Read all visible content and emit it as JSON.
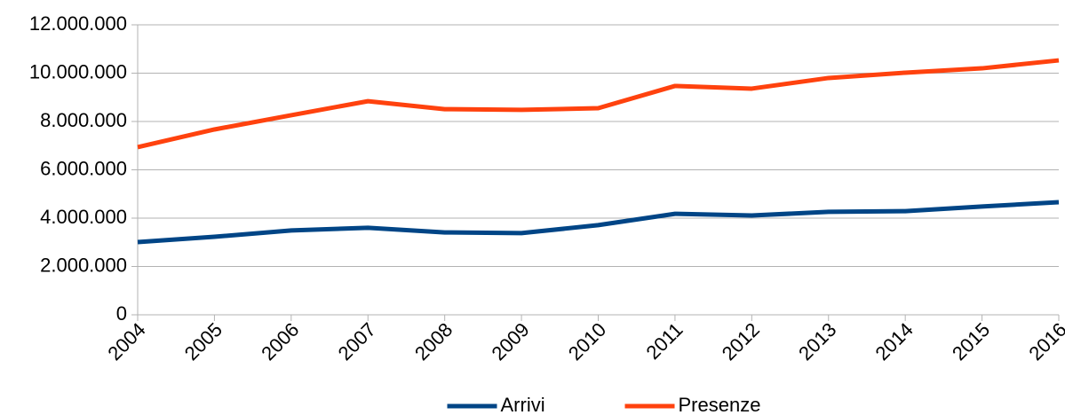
{
  "chart_data": {
    "type": "line",
    "categories": [
      "2004",
      "2005",
      "2006",
      "2007",
      "2008",
      "2009",
      "2010",
      "2011",
      "2012",
      "2013",
      "2014",
      "2015",
      "2016"
    ],
    "series": [
      {
        "name": "Arrivi",
        "color": "#004586",
        "values": [
          3010000,
          3230000,
          3490000,
          3600000,
          3410000,
          3380000,
          3710000,
          4180000,
          4110000,
          4260000,
          4290000,
          4480000,
          4660000
        ]
      },
      {
        "name": "Presenze",
        "color": "#ff420e",
        "values": [
          6940000,
          7670000,
          8260000,
          8840000,
          8510000,
          8480000,
          8550000,
          9470000,
          9360000,
          9800000,
          10020000,
          10200000,
          10530000
        ]
      }
    ],
    "ylim": [
      0,
      12000000
    ],
    "yticks": [
      0,
      {
        "value": 2000000,
        "label": "2.000.000"
      },
      {
        "value": 4000000,
        "label": "4.000.000"
      },
      {
        "value": 6000000,
        "label": "6.000.000"
      },
      {
        "value": 8000000,
        "label": "8.000.000"
      },
      {
        "value": 10000000,
        "label": "10.000.000"
      },
      {
        "value": 12000000,
        "label": "12.000.000"
      }
    ],
    "grid": true,
    "legend": "bottom"
  }
}
